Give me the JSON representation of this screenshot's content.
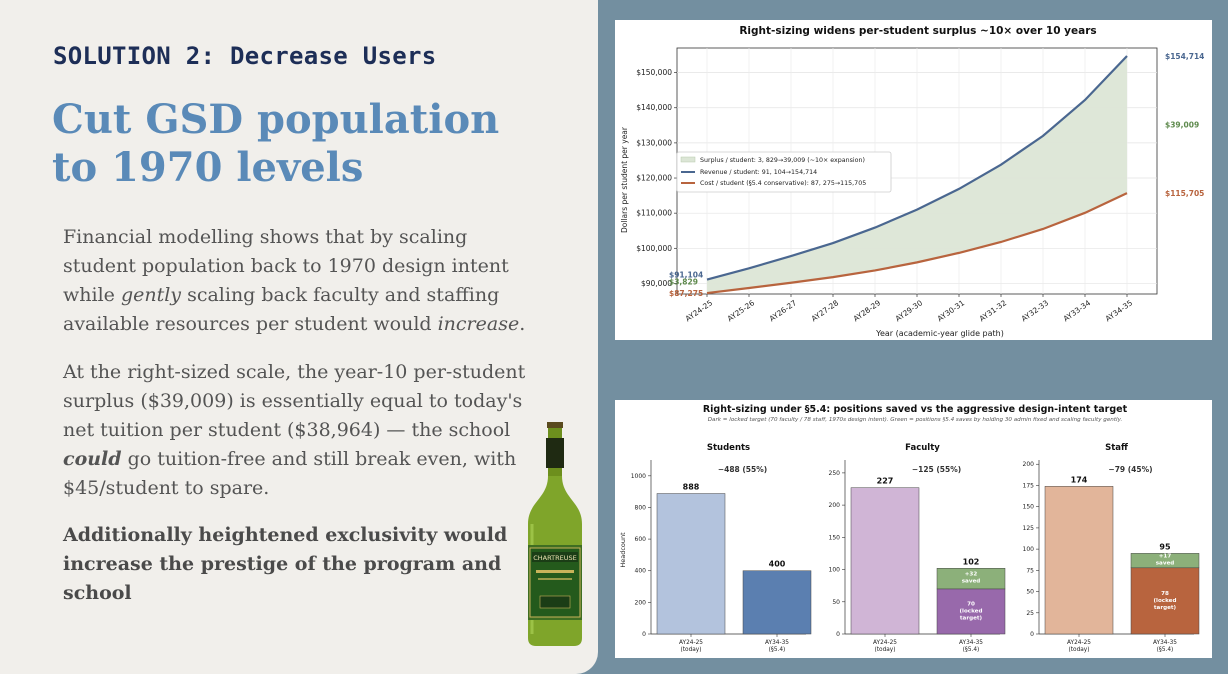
{
  "slide": {
    "kicker": "SOLUTION 2: Decrease Users",
    "title_line1": "Cut GSD population",
    "title_line2": "to 1970 levels",
    "para1": {
      "a": "Financial modelling shows that by scaling student population back to 1970 design intent while ",
      "em1": "gently",
      "b": " scaling back faculty and staffing available resources per student would ",
      "em2": "increase",
      "c": "."
    },
    "para2": {
      "a": "At the right-sized scale, the year-10 per-student surplus ($39,009) is essentially equal to today's net tuition per student ($38,964) — the school ",
      "em": "could",
      "b": " go tuition-free and still break even, with $45/student to spare."
    },
    "para3": "Additionally heightened exclusivity would increase the prestige of the program and school",
    "bottle_label": "CHARTREUSE"
  },
  "chart_data": [
    {
      "type": "area",
      "title": "Right-sizing widens per-student surplus ~10× over 10 years",
      "xlabel": "Year (academic-year glide path)",
      "ylabel": "Dollars per student per year",
      "categories": [
        "AY24-25",
        "AY25-26",
        "AY26-27",
        "AY27-28",
        "AY28-29",
        "AY29-30",
        "AY30-31",
        "AY31-32",
        "AY32-33",
        "AY33-34",
        "AY34-35"
      ],
      "ylim": [
        87000,
        157000
      ],
      "yticks": [
        90000,
        100000,
        110000,
        120000,
        130000,
        140000,
        150000
      ],
      "ytick_labels": [
        "$90,000",
        "$100,000",
        "$110,000",
        "$120,000",
        "$130,000",
        "$140,000",
        "$150,000"
      ],
      "grid": true,
      "legend_position": "center-left",
      "series": [
        {
          "name": "Revenue / student: 91, 104→154,714",
          "color": "#4a6790",
          "values": [
            91104,
            94300,
            97800,
            101500,
            105900,
            111000,
            116900,
            123800,
            132000,
            142200,
            154714
          ]
        },
        {
          "name": "Cost / student (§5.4 conservative): 87, 275→115,705",
          "color": "#b8643e",
          "values": [
            87275,
            88700,
            90200,
            91800,
            93700,
            96000,
            98700,
            101800,
            105500,
            110100,
            115705
          ]
        }
      ],
      "fill_label": "Surplus / student: 3, 829→39,009 (~10× expansion)",
      "fill_color": "#dce6d6",
      "annotations": {
        "start_revenue": "$91,104",
        "start_surplus": "$3,829",
        "start_cost": "$87,275",
        "end_revenue": "$154,714",
        "end_surplus": "$39,009",
        "end_cost": "$115,705"
      }
    },
    {
      "type": "bar",
      "title": "Right-sizing under §5.4: positions saved vs the aggressive design-intent target",
      "subtitle": "Dark = locked target (70 faculty / 78 staff, 1970s design intent). Green = positions §5.4 saves by holding 30 admin fixed and scaling faculty gently.",
      "ylabel": "Headcount",
      "panels": [
        {
          "title": "Students",
          "categories": [
            "AY24-25\n(today)",
            "AY34-35\n(§5.4)"
          ],
          "ylim": [
            0,
            1100
          ],
          "yticks": [
            0,
            200,
            400,
            600,
            800,
            1000
          ],
          "values": [
            888,
            400
          ],
          "totals": [
            "888",
            "400"
          ],
          "change_label": "−488 (55%)",
          "colors": [
            "#b3c3dd",
            "#5b7fb0"
          ]
        },
        {
          "title": "Faculty",
          "categories": [
            "AY24-25\n(today)",
            "AY34-35\n(§5.4)"
          ],
          "ylim": [
            0,
            270
          ],
          "yticks": [
            0,
            50,
            100,
            150,
            200,
            250
          ],
          "values": [
            227,
            102
          ],
          "locked": 70,
          "saved": 32,
          "totals": [
            "227",
            "102"
          ],
          "locked_label": "70\n(locked\ntarget)",
          "saved_label": "+32\nsaved",
          "change_label": "−125 (55%)",
          "colors": [
            "#d0b5d6",
            "#9869ab"
          ]
        },
        {
          "title": "Staff",
          "categories": [
            "AY24-25\n(today)",
            "AY34-35\n(§5.4)"
          ],
          "ylim": [
            0,
            205
          ],
          "yticks": [
            0,
            25,
            50,
            75,
            100,
            125,
            150,
            175,
            200
          ],
          "values": [
            174,
            95
          ],
          "locked": 78,
          "saved": 17,
          "totals": [
            "174",
            "95"
          ],
          "locked_label": "78\n(locked\ntarget)",
          "saved_label": "+17\nsaved",
          "change_label": "−79 (45%)",
          "colors": [
            "#e2b59a",
            "#b8643e"
          ]
        }
      ],
      "saved_color": "#8cb07a"
    }
  ]
}
